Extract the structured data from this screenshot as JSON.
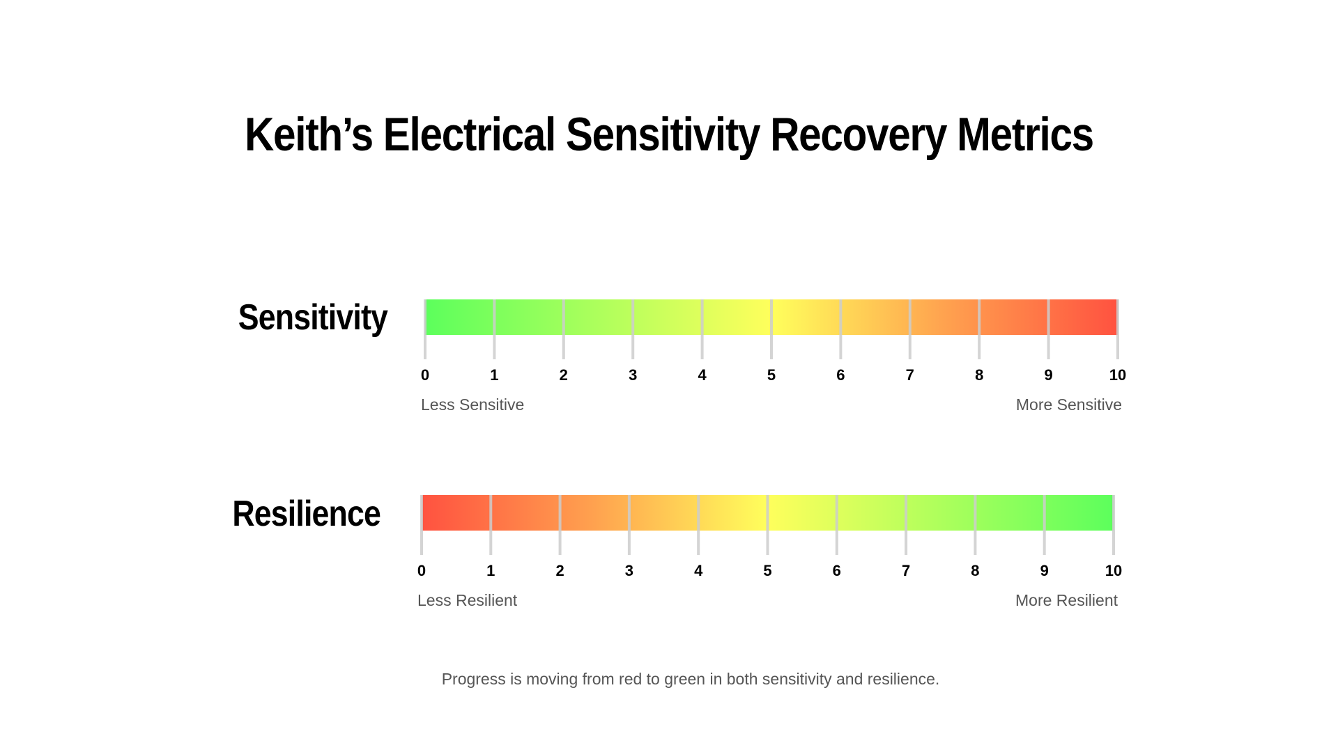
{
  "title": "Keith’s Electrical Sensitivity Recovery Metrics",
  "colors": {
    "red": "#ff5240",
    "orange": "#ffa24f",
    "yellow": "#ffff5c",
    "green": "#5cff5c",
    "tick": "#cccccc",
    "caption": "#555555"
  },
  "scales": [
    {
      "label": "Sensitivity",
      "min": 0,
      "max": 10,
      "ticks": [
        "0",
        "1",
        "2",
        "3",
        "4",
        "5",
        "6",
        "7",
        "8",
        "9",
        "10"
      ],
      "gradient_direction": "green-to-red",
      "low_caption": "Less Sensitive",
      "high_caption": "More Sensitive"
    },
    {
      "label": "Resilience",
      "min": 0,
      "max": 10,
      "ticks": [
        "0",
        "1",
        "2",
        "3",
        "4",
        "5",
        "6",
        "7",
        "8",
        "9",
        "10"
      ],
      "gradient_direction": "red-to-green",
      "low_caption": "Less Resilient",
      "high_caption": "More Resilient"
    }
  ],
  "footer": "Progress is moving from red to green in both sensitivity and resilience."
}
